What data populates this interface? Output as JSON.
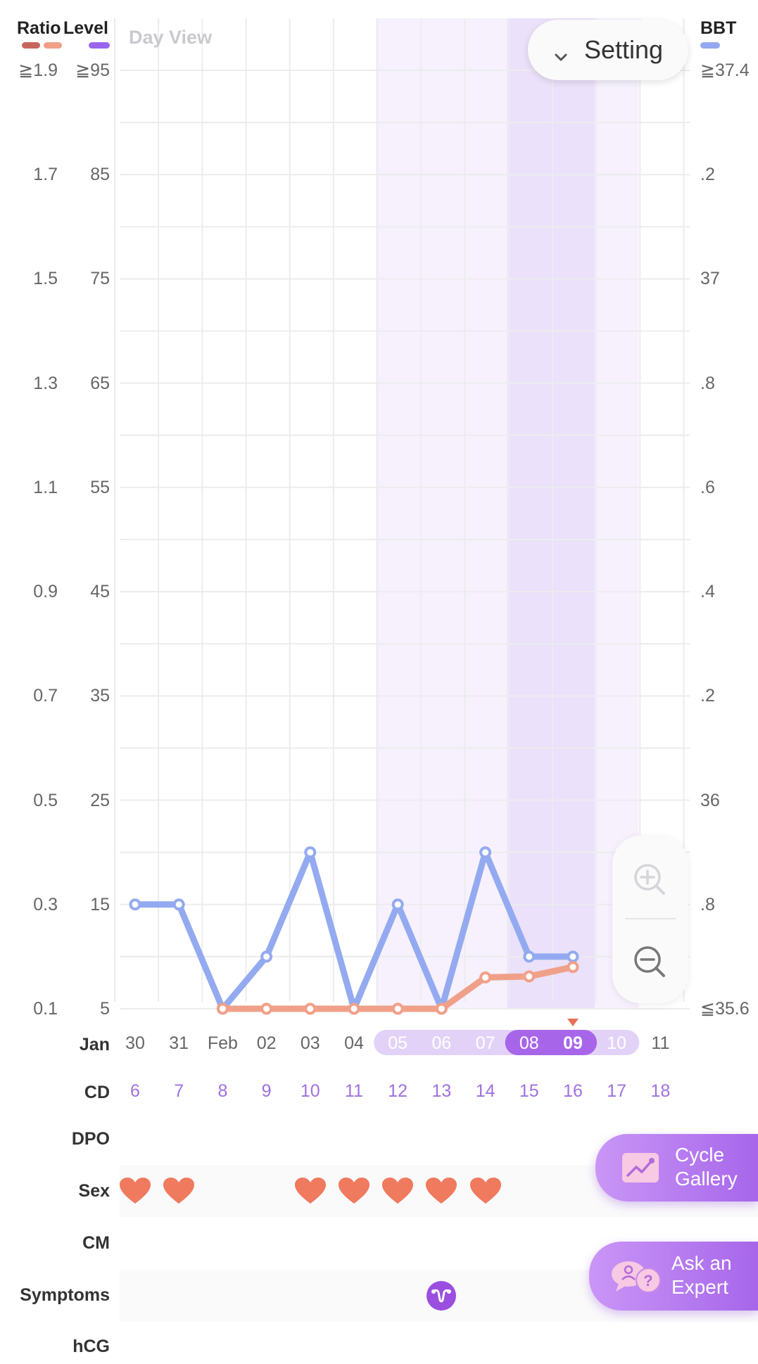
{
  "header": {
    "ratio_label": "Ratio",
    "level_label": "Level",
    "bbt_label": "BBT",
    "view_label": "Day View",
    "setting_label": "Setting"
  },
  "colors": {
    "ratio": "#c8645e",
    "ratio_line": "#f0a088",
    "level": "#9966ee",
    "bbt": "#94aaf0",
    "cycle": "#a766ea",
    "heart": "#f07a5e"
  },
  "axes": {
    "ratio_ticks": [
      "≧1.9",
      "1.7",
      "1.5",
      "1.3",
      "1.1",
      "0.9",
      "0.7",
      "0.5",
      "0.3",
      "0.1"
    ],
    "level_ticks": [
      "≧95",
      "85",
      "75",
      "65",
      "55",
      "45",
      "35",
      "25",
      "15",
      "5"
    ],
    "bbt_ticks": [
      "≧37.4",
      ".2",
      "37",
      ".8",
      ".6",
      ".4",
      ".2",
      "36",
      ".8",
      "≦35.6"
    ]
  },
  "x_axis": {
    "month_label": "Jan",
    "dates": [
      "30",
      "31",
      "Feb",
      "02",
      "03",
      "04",
      "05",
      "06",
      "07",
      "08",
      "09",
      "10",
      "11"
    ],
    "cd_label": "CD",
    "cd": [
      "6",
      "7",
      "8",
      "9",
      "10",
      "11",
      "12",
      "13",
      "14",
      "15",
      "16",
      "17",
      "18"
    ]
  },
  "chart_data": {
    "type": "line",
    "x_label": "Day",
    "categories": [
      "Jan 30",
      "Jan 31",
      "Feb 01",
      "Feb 02",
      "Feb 03",
      "Feb 04",
      "Feb 05",
      "Feb 06",
      "Feb 07",
      "Feb 08",
      "Feb 09",
      "Feb 10",
      "Feb 11"
    ],
    "series": [
      {
        "name": "Level",
        "axis": "level",
        "values": [
          15,
          15,
          5,
          10,
          20,
          5,
          15,
          5,
          20,
          10,
          10,
          null,
          null
        ]
      },
      {
        "name": "Ratio",
        "axis": "ratio",
        "values": [
          null,
          null,
          0.1,
          0.1,
          0.1,
          0.1,
          0.1,
          0.1,
          0.16,
          0.162,
          0.18,
          null,
          null
        ]
      }
    ],
    "level_ylim": [
      5,
      95
    ],
    "ratio_ylim": [
      0.1,
      1.9
    ],
    "bbt_ylim": [
      35.6,
      37.4
    ],
    "fertile_window": [
      "Feb 05",
      "Feb 10"
    ],
    "peak_days": [
      "Feb 08",
      "Feb 09"
    ],
    "today": "Feb 09",
    "grid": true
  },
  "rows": [
    {
      "label": "DPO"
    },
    {
      "label": "Sex",
      "days": [
        "Jan 30",
        "Jan 31",
        "Feb 03",
        "Feb 04",
        "Feb 05",
        "Feb 06",
        "Feb 07"
      ]
    },
    {
      "label": "CM"
    },
    {
      "label": "Symptoms",
      "days": [
        "Feb 06"
      ]
    },
    {
      "label": "hCG"
    }
  ],
  "fabs": {
    "gallery_line1": "Cycle",
    "gallery_line2": "Gallery",
    "expert_line1": "Ask an",
    "expert_line2": "Expert"
  }
}
